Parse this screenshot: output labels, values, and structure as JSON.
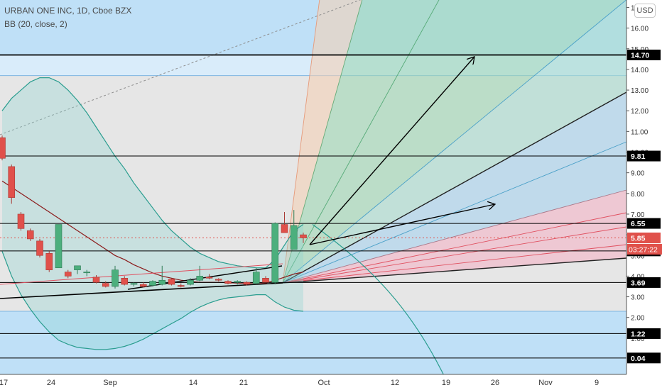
{
  "header": {
    "title": "URBAN ONE INC, 1D, Cboe BZX",
    "indicator": "BB (20, close, 2)",
    "currency_button": "USD"
  },
  "colors": {
    "up": "#4caf7d",
    "down": "#e0514b",
    "bb_band": "#2a9d8f",
    "bb_basis": "#8b1a1a",
    "hline": "#000000",
    "fan_fill_green": "#9fd7b4",
    "fan_fill_blue": "#a7d2ee",
    "fan_fill_red": "#f3b4c6",
    "box_blue": "#bfe0f7",
    "box_gray": "#e6e6e6"
  },
  "chart_data": {
    "type": "candlestick",
    "symbol": "URBAN ONE INC",
    "interval": "1D",
    "exchange": "Cboe BZX",
    "ylim": [
      0,
      17
    ],
    "y_ticks": [
      "17.00",
      "16.00",
      "15.00",
      "14.00",
      "13.00",
      "12.00",
      "11.00",
      "10.00",
      "9.00",
      "8.00",
      "7.00",
      "6.00",
      "5.00",
      "4.00",
      "3.00",
      "2.00",
      "1.00"
    ],
    "x_ticks": [
      "17",
      "24",
      "Sep",
      "14",
      "21",
      "Oct",
      "12",
      "19",
      "26",
      "Nov",
      "9"
    ],
    "candles": [
      {
        "o": 10.7,
        "h": 10.8,
        "l": 9.6,
        "c": 9.7
      },
      {
        "o": 9.3,
        "h": 9.4,
        "l": 7.5,
        "c": 7.8
      },
      {
        "o": 7.0,
        "h": 7.1,
        "l": 6.2,
        "c": 6.3
      },
      {
        "o": 6.2,
        "h": 6.3,
        "l": 5.7,
        "c": 5.8
      },
      {
        "o": 5.7,
        "h": 5.8,
        "l": 4.9,
        "c": 5.0
      },
      {
        "o": 5.1,
        "h": 5.2,
        "l": 4.2,
        "c": 4.3
      },
      {
        "o": 4.4,
        "h": 6.5,
        "l": 4.4,
        "c": 6.5
      },
      {
        "o": 4.2,
        "h": 4.3,
        "l": 3.9,
        "c": 4.0
      },
      {
        "o": 4.3,
        "h": 4.5,
        "l": 4.1,
        "c": 4.5
      },
      {
        "o": 4.2,
        "h": 4.3,
        "l": 4.0,
        "c": 4.2
      },
      {
        "o": 3.95,
        "h": 4.05,
        "l": 3.65,
        "c": 3.7
      },
      {
        "o": 3.65,
        "h": 3.75,
        "l": 3.45,
        "c": 3.5
      },
      {
        "o": 3.5,
        "h": 4.5,
        "l": 3.4,
        "c": 4.3
      },
      {
        "o": 3.9,
        "h": 4.0,
        "l": 3.55,
        "c": 3.6
      },
      {
        "o": 3.6,
        "h": 3.7,
        "l": 3.5,
        "c": 3.65
      },
      {
        "o": 3.6,
        "h": 3.7,
        "l": 3.45,
        "c": 3.5
      },
      {
        "o": 3.55,
        "h": 3.8,
        "l": 3.5,
        "c": 3.75
      },
      {
        "o": 3.6,
        "h": 4.5,
        "l": 3.55,
        "c": 3.8
      },
      {
        "o": 3.85,
        "h": 3.9,
        "l": 3.55,
        "c": 3.6
      },
      {
        "o": 3.55,
        "h": 3.65,
        "l": 3.45,
        "c": 3.5
      },
      {
        "o": 3.6,
        "h": 3.9,
        "l": 3.55,
        "c": 3.8
      },
      {
        "o": 3.8,
        "h": 4.5,
        "l": 3.75,
        "c": 4.0
      },
      {
        "o": 3.95,
        "h": 4.1,
        "l": 3.85,
        "c": 3.9
      },
      {
        "o": 3.85,
        "h": 3.9,
        "l": 3.75,
        "c": 3.8
      },
      {
        "o": 3.75,
        "h": 3.8,
        "l": 3.6,
        "c": 3.65
      },
      {
        "o": 3.7,
        "h": 3.8,
        "l": 3.6,
        "c": 3.75
      },
      {
        "o": 3.7,
        "h": 3.75,
        "l": 3.55,
        "c": 3.6
      },
      {
        "o": 3.65,
        "h": 4.4,
        "l": 3.6,
        "c": 4.2
      },
      {
        "o": 3.9,
        "h": 4.0,
        "l": 3.7,
        "c": 3.7
      },
      {
        "o": 3.7,
        "h": 6.6,
        "l": 3.6,
        "c": 6.55
      },
      {
        "o": 6.5,
        "h": 7.1,
        "l": 6.1,
        "c": 6.1
      },
      {
        "o": 5.3,
        "h": 7.2,
        "l": 5.3,
        "c": 6.45
      },
      {
        "o": 6.0,
        "h": 6.1,
        "l": 5.6,
        "c": 5.85
      }
    ],
    "horizontal_levels": [
      {
        "value": 14.7,
        "label": "14.70"
      },
      {
        "value": 9.81,
        "label": "9.81"
      },
      {
        "value": 6.55,
        "label": "6.55"
      },
      {
        "value": 5.22,
        "label": "5.22"
      },
      {
        "value": 3.69,
        "label": "3.69"
      },
      {
        "value": 1.22,
        "label": "1.22"
      },
      {
        "value": 0.04,
        "label": "0.04"
      }
    ],
    "last_price": {
      "value": 5.85,
      "label": "5.85",
      "countdown": "03:27:22"
    },
    "bollinger_upper": [
      12.0,
      12.6,
      13.0,
      13.4,
      13.6,
      13.6,
      13.4,
      13.0,
      12.5,
      11.9,
      11.2,
      10.5,
      9.8,
      9.2,
      8.5,
      7.9,
      7.3,
      6.7,
      6.2,
      5.8,
      5.4,
      5.1,
      4.9,
      4.7,
      4.6,
      4.5,
      4.45,
      4.4,
      4.4,
      4.8,
      5.5,
      6.2,
      6.5
    ],
    "bollinger_basis": [
      8.6,
      8.3,
      8.0,
      7.7,
      7.4,
      7.1,
      6.8,
      6.5,
      6.2,
      5.9,
      5.6,
      5.3,
      5.0,
      4.8,
      4.55,
      4.35,
      4.15,
      4.0,
      3.9,
      3.8,
      3.75,
      3.7,
      3.7,
      3.7,
      3.68,
      3.66,
      3.66,
      3.67,
      3.66,
      3.8,
      3.95,
      4.1,
      4.2
    ],
    "bollinger_lower": [
      5.2,
      4.0,
      3.1,
      2.4,
      1.8,
      1.3,
      0.9,
      0.7,
      0.55,
      0.5,
      0.45,
      0.45,
      0.5,
      0.6,
      0.75,
      0.95,
      1.2,
      1.45,
      1.7,
      1.95,
      2.25,
      2.5,
      2.7,
      2.85,
      2.95,
      3.0,
      3.05,
      3.1,
      3.1,
      2.75,
      2.5,
      2.35,
      2.3
    ]
  }
}
